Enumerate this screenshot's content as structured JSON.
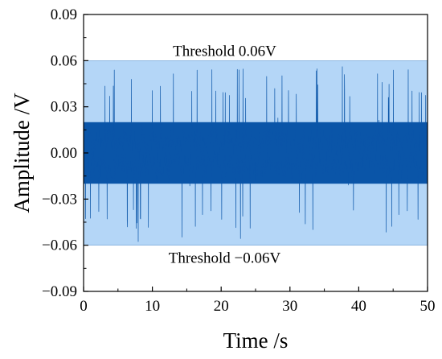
{
  "chart_data": {
    "type": "line",
    "xlabel": "Time /s",
    "ylabel": "Amplitude /V",
    "xlim": [
      0,
      50
    ],
    "ylim": [
      -0.09,
      0.09
    ],
    "x_ticks": [
      0,
      10,
      20,
      30,
      40,
      50
    ],
    "y_ticks": [
      -0.09,
      -0.06,
      -0.03,
      0.0,
      0.03,
      0.06,
      0.09
    ],
    "x_tick_labels": [
      "0",
      "10",
      "20",
      "30",
      "40",
      "50"
    ],
    "y_tick_labels": [
      "−0.09",
      "−0.06",
      "−0.03",
      "0.00",
      "0.03",
      "0.06",
      "0.09"
    ],
    "grid": false,
    "threshold_band": {
      "lower": -0.06,
      "upper": 0.06,
      "color": "#b4d6f7"
    },
    "annotations": {
      "upper": "Threshold 0.06V",
      "lower": "Threshold −0.06V"
    },
    "series": [
      {
        "color": "#0a55a8",
        "x_range": [
          0,
          50
        ],
        "core_amplitude": 0.02,
        "spread_amplitude": 0.03,
        "peak_amplitude": 0.058
      }
    ]
  }
}
